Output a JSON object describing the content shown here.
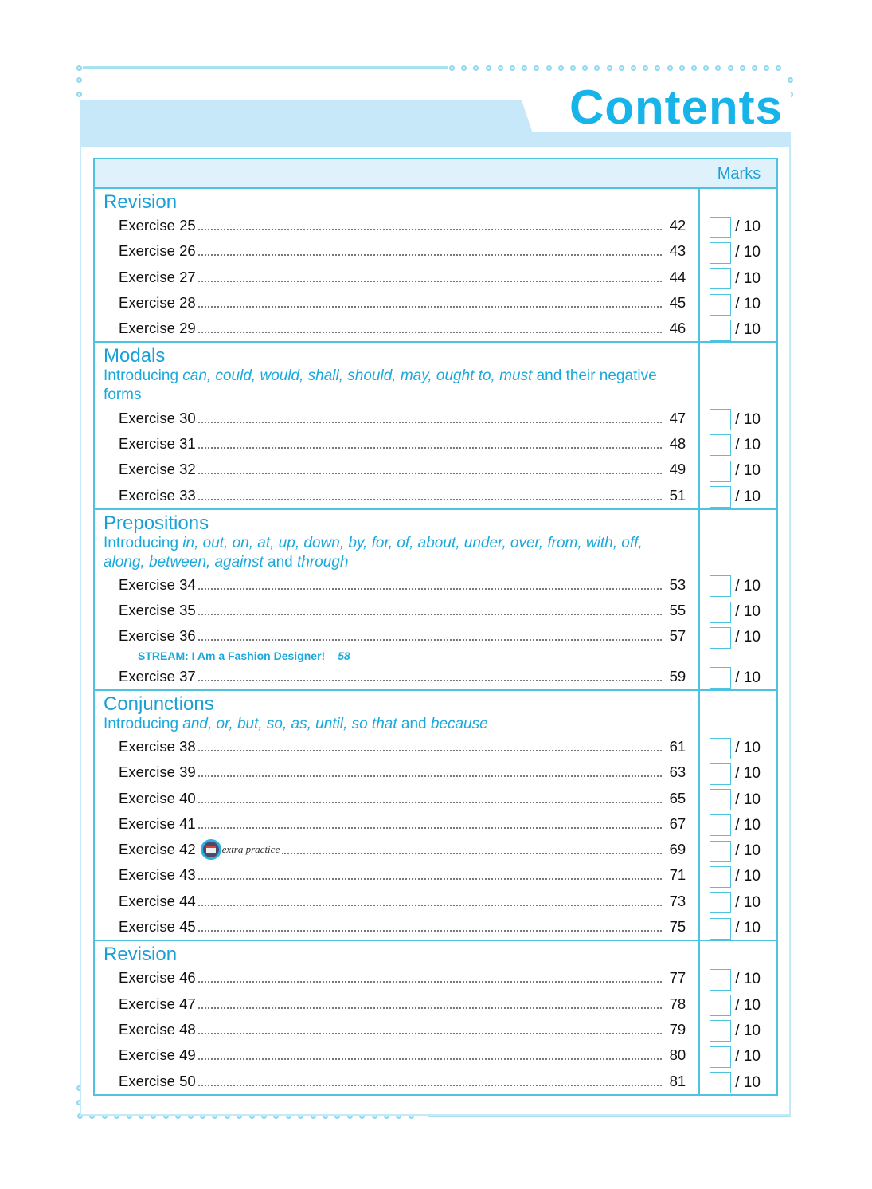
{
  "title": "Contents",
  "marks_header": "Marks",
  "out_of": "/ 10",
  "sections": [
    {
      "title": "Revision",
      "subtitle": [],
      "rows": [
        {
          "label": "Exercise 25",
          "page": "42"
        },
        {
          "label": "Exercise 26",
          "page": "43"
        },
        {
          "label": "Exercise 27",
          "page": "44"
        },
        {
          "label": "Exercise 28",
          "page": "45"
        },
        {
          "label": "Exercise 29",
          "page": "46"
        }
      ]
    },
    {
      "title": "Modals",
      "subtitle": [
        {
          "text": "Introducing ",
          "italic": false
        },
        {
          "text": "can, could, would, shall, should, may, ought to, must",
          "italic": true
        },
        {
          "text": " and their negative forms",
          "italic": false
        }
      ],
      "rows": [
        {
          "label": "Exercise 30",
          "page": "47"
        },
        {
          "label": "Exercise 31",
          "page": "48"
        },
        {
          "label": "Exercise 32",
          "page": "49"
        },
        {
          "label": "Exercise 33",
          "page": "51"
        }
      ]
    },
    {
      "title": "Prepositions",
      "subtitle": [
        {
          "text": "Introducing ",
          "italic": false
        },
        {
          "text": "in, out, on, at, up, down, by, for, of, about, under, over, from, with, off, along, between, against",
          "italic": true
        },
        {
          "text": " and ",
          "italic": false
        },
        {
          "text": "through",
          "italic": true
        }
      ],
      "rows": [
        {
          "label": "Exercise 34",
          "page": "53"
        },
        {
          "label": "Exercise 35",
          "page": "55"
        },
        {
          "label": "Exercise 36",
          "page": "57",
          "stream": {
            "text": "STREAM: I Am a Fashion Designer!",
            "page": "58"
          }
        },
        {
          "label": "Exercise 37",
          "page": "59"
        }
      ]
    },
    {
      "title": "Conjunctions",
      "subtitle": [
        {
          "text": "Introducing ",
          "italic": false
        },
        {
          "text": "and, or, but, so, as, until, so that",
          "italic": true
        },
        {
          "text": " and ",
          "italic": false
        },
        {
          "text": "because",
          "italic": true
        }
      ],
      "rows": [
        {
          "label": "Exercise 38",
          "page": "61"
        },
        {
          "label": "Exercise 39",
          "page": "63"
        },
        {
          "label": "Exercise 40",
          "page": "65"
        },
        {
          "label": "Exercise 41",
          "page": "67"
        },
        {
          "label": "Exercise 42",
          "page": "69",
          "extra": "extra practice"
        },
        {
          "label": "Exercise 43",
          "page": "71"
        },
        {
          "label": "Exercise 44",
          "page": "73"
        },
        {
          "label": "Exercise 45",
          "page": "75"
        }
      ]
    },
    {
      "title": "Revision",
      "subtitle": [],
      "rows": [
        {
          "label": "Exercise 46",
          "page": "77"
        },
        {
          "label": "Exercise 47",
          "page": "78"
        },
        {
          "label": "Exercise 48",
          "page": "79"
        },
        {
          "label": "Exercise 49",
          "page": "80"
        },
        {
          "label": "Exercise 50",
          "page": "81"
        }
      ]
    }
  ],
  "colors": {
    "accent": "#17b4ea",
    "heading": "#1a9fd6",
    "border": "#4ec3df",
    "band": "#c6e8f9"
  }
}
